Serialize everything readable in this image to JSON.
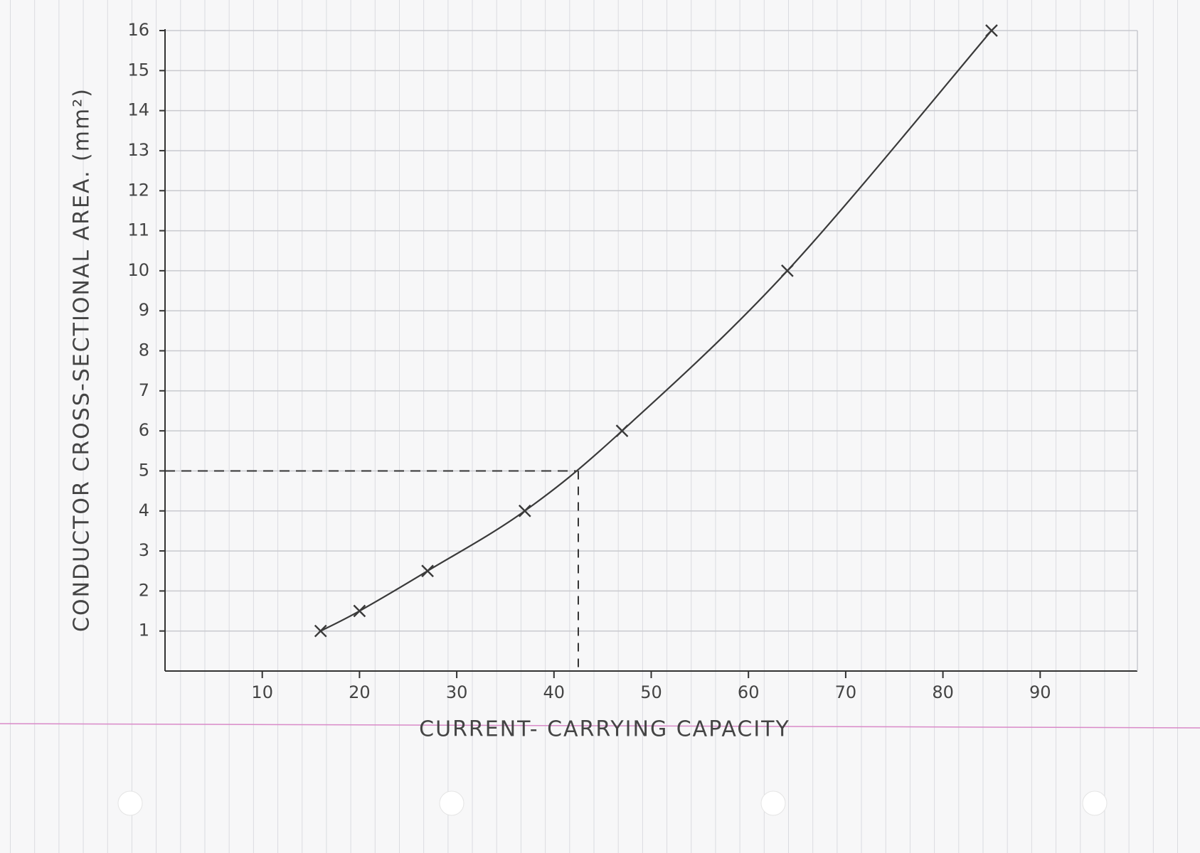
{
  "chart_data": {
    "type": "line",
    "x_label": "CURRENT- CARRYING CAPACITY",
    "y_label": "CONDUCTOR CROSS-SECTIONAL AREA. (mm²)",
    "x": [
      16,
      20,
      27,
      37,
      47,
      64,
      85
    ],
    "series": [
      {
        "color": "#3a3a3a",
        "values": [
          1,
          1.5,
          2.5,
          4,
          6,
          10,
          16
        ]
      }
    ],
    "xlim": [
      0,
      100
    ],
    "ylim": [
      0,
      16
    ],
    "xticks": [
      10,
      20,
      30,
      40,
      50,
      60,
      70,
      80,
      90
    ],
    "yticks": [
      1,
      2,
      3,
      4,
      5,
      6,
      7,
      8,
      9,
      10,
      11,
      12,
      13,
      14,
      15,
      16
    ],
    "reference_x": 42.5,
    "reference_y": 5,
    "grid": true
  }
}
